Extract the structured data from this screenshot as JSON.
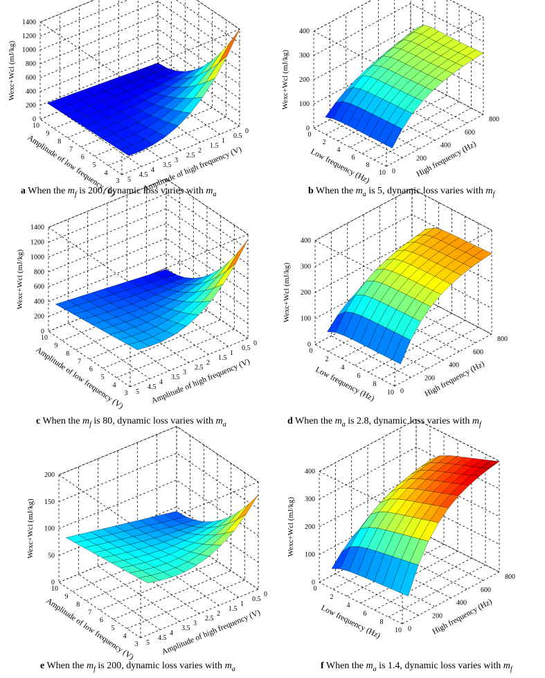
{
  "chart_data": [
    {
      "type": "surface3d",
      "panel": "a",
      "zlabel": "Wexc+Wcl (mJ/kg)",
      "xlabel": "Amplitude of low frequency (V)",
      "ylabel": "Amplitude of high frequency (V)",
      "x_ticks": [
        "10",
        "9",
        "8",
        "7",
        "6",
        "5",
        "4",
        "3"
      ],
      "y_ticks": [
        "5",
        "4.5",
        "4",
        "3.5",
        "3",
        "2.5",
        "2",
        "1.5",
        "1",
        "0.5",
        "0"
      ],
      "z_ticks": [
        "0",
        "200",
        "400",
        "600",
        "800",
        "1000",
        "1200",
        "1400"
      ],
      "zlim": [
        0,
        1400
      ],
      "surface": {
        "x": [
          10,
          3
        ],
        "y": [
          5,
          0.5
        ],
        "z_at_xmax_ymax": 200,
        "z_at_xmin_ymin": 1450,
        "z_at_xmax_ymin": 250,
        "z_at_xmin_ymax": 60
      },
      "caption": {
        "letter": "a",
        "pre": "When the ",
        "var": "m",
        "sub": "f",
        "mid": " is 200, dynamic loss varies with ",
        "var2": "m",
        "sub2": "a"
      }
    },
    {
      "type": "surface3d",
      "panel": "b",
      "zlabel": "Wexc+Wcl (mJ/kg)",
      "xlabel": "Low frequency (Hz)",
      "ylabel": "High frequency (Hz)",
      "x_ticks": [
        "0",
        "2",
        "4",
        "6",
        "8",
        "10"
      ],
      "y_ticks": [
        "0",
        "200",
        "400",
        "600",
        "800"
      ],
      "z_ticks": [
        "0",
        "100",
        "200",
        "300",
        "400"
      ],
      "zlim": [
        0,
        400
      ],
      "surface": {
        "x": [
          1,
          10
        ],
        "y": [
          50,
          800
        ],
        "z_at_xmin_ymax": 320,
        "z_plateau": 220,
        "z_at_xmin_ymin": 20,
        "z_at_xmax_ymin": 40
      },
      "caption": {
        "letter": "b",
        "pre": "When the ",
        "var": "m",
        "sub": "a",
        "mid": " is 5, dynamic loss varies with ",
        "var2": "m",
        "sub2": "f"
      }
    },
    {
      "type": "surface3d",
      "panel": "c",
      "zlabel": "Wexc+Wcl (mJ/kg)",
      "xlabel": "Amplitude of low frequency (V)",
      "ylabel": "Amplitude of high frequency (V)",
      "x_ticks": [
        "10",
        "9",
        "8",
        "7",
        "6",
        "5",
        "4",
        "3"
      ],
      "y_ticks": [
        "5",
        "4.5",
        "4",
        "3.5",
        "3",
        "2.5",
        "2",
        "1.5",
        "1",
        "0.5",
        "0"
      ],
      "z_ticks": [
        "0",
        "200",
        "400",
        "600",
        "800",
        "1000",
        "1200",
        "1400"
      ],
      "zlim": [
        0,
        1400
      ],
      "surface": {
        "x": [
          10,
          3
        ],
        "y": [
          5,
          0.5
        ],
        "z_at_xmin_ymin": 1450,
        "z_at_xmax_ymax": 350
      },
      "caption": {
        "letter": "c",
        "pre": "When the ",
        "var": "m",
        "sub": "f",
        "mid": " is 80, dynamic loss varies with ",
        "var2": "m",
        "sub2": "a"
      }
    },
    {
      "type": "surface3d",
      "panel": "d",
      "zlabel": "Wexc+Wcl (mJ/kg)",
      "xlabel": "Low frequency (Hz)",
      "ylabel": "High frequency (Hz)",
      "x_ticks": [
        "0",
        "2",
        "4",
        "6",
        "8",
        "10"
      ],
      "y_ticks": [
        "0",
        "200",
        "400",
        "600",
        "800"
      ],
      "z_ticks": [
        "0",
        "100",
        "200",
        "300",
        "400"
      ],
      "zlim": [
        0,
        400
      ],
      "surface": {
        "x": [
          1,
          10
        ],
        "y": [
          50,
          800
        ],
        "z_at_xmin_ymax": 320,
        "z_plateau": 300,
        "z_at_xmin_ymin": 20,
        "z_at_xmax_ymin": 60
      },
      "caption": {
        "letter": "d",
        "pre": "When the ",
        "var": "m",
        "sub": "a",
        "mid": " is 2.8, dynamic loss varies with ",
        "var2": "m",
        "sub2": "f"
      }
    },
    {
      "type": "surface3d",
      "panel": "e",
      "zlabel": "Wexc+Wcl (mJ/kg)",
      "xlabel": "Amplitude of low frequency (V)",
      "ylabel": "Amplitude of high frequency (V)",
      "x_ticks": [
        "10",
        "9",
        "8",
        "7",
        "6",
        "5",
        "4",
        "3"
      ],
      "y_ticks": [
        "5",
        "4.5",
        "4",
        "3.5",
        "3",
        "2.5",
        "2",
        "1.5",
        "1",
        "0.5",
        "0"
      ],
      "z_ticks": [
        "0",
        "50",
        "100",
        "150",
        "200"
      ],
      "zlim": [
        0,
        200
      ],
      "surface": {
        "x": [
          10,
          3
        ],
        "y": [
          5,
          0.5
        ],
        "z_at_xmin_ymin": 210,
        "z_at_xmax_ymax": 85
      },
      "caption": {
        "letter": "e",
        "pre": "When the ",
        "var": "m",
        "sub": "f",
        "mid": " is 200, dynamic loss varies with ",
        "var2": "m",
        "sub2": "a"
      }
    },
    {
      "type": "surface3d",
      "panel": "f",
      "zlabel": "Wexc+Wcl (mJ/kg)",
      "xlabel": "Low frequency (Hz)",
      "ylabel": "High frequency (Hz)",
      "x_ticks": [
        "0",
        "2",
        "4",
        "6",
        "8",
        "10"
      ],
      "y_ticks": [
        "0",
        "200",
        "400",
        "600",
        "800"
      ],
      "z_ticks": [
        "0",
        "100",
        "200",
        "300",
        "400"
      ],
      "zlim": [
        0,
        400
      ],
      "surface": {
        "x": [
          1,
          10
        ],
        "y": [
          50,
          800
        ],
        "z_at_xmin_ymax": 320,
        "z_at_xmax_ymax": 400,
        "z_at_xmin_ymin": 20,
        "z_at_xmax_ymin": 60
      },
      "caption": {
        "letter": "f",
        "pre": "When the ",
        "var": "m",
        "sub": "a",
        "mid": " is 1.4, dynamic loss varies with ",
        "var2": "m",
        "sub2": "f"
      }
    }
  ],
  "colormap": [
    "#00008f",
    "#0000ff",
    "#0080ff",
    "#00ffff",
    "#80ff80",
    "#ffff00",
    "#ff8000",
    "#ff0000",
    "#800000"
  ]
}
